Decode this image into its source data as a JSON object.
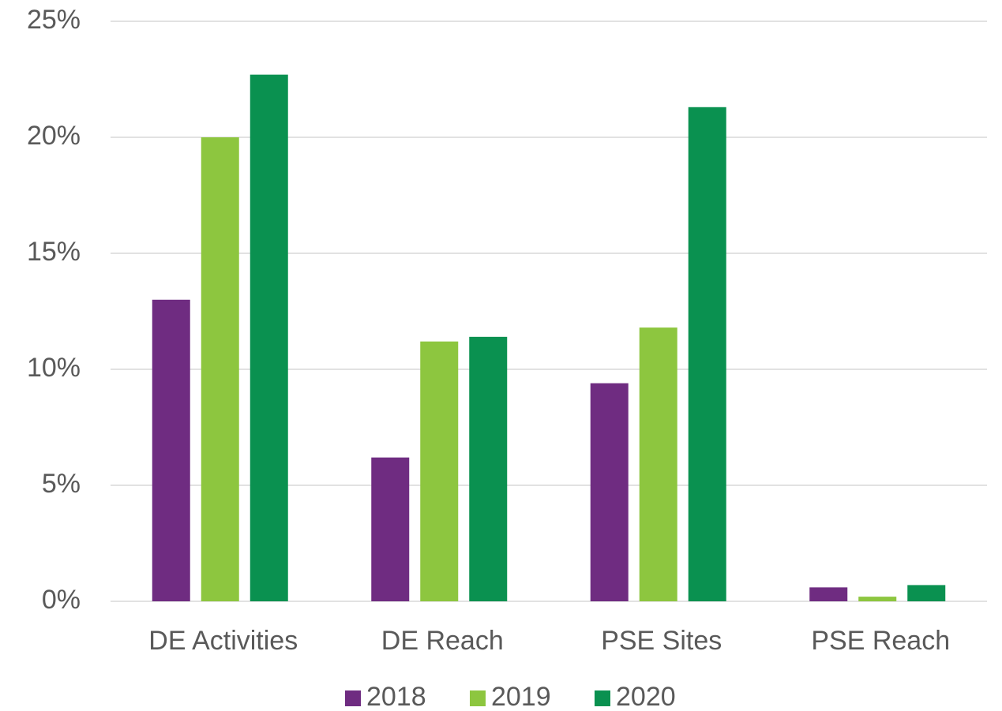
{
  "chart_data": {
    "type": "bar",
    "categories": [
      "DE Activities",
      "DE Reach",
      "PSE Sites",
      "PSE Reach"
    ],
    "series": [
      {
        "name": "2018",
        "color": "#6f2c81",
        "values": [
          13,
          6.2,
          9.4,
          0.6
        ]
      },
      {
        "name": "2019",
        "color": "#8dc63f",
        "values": [
          20,
          11.2,
          11.8,
          0.2
        ]
      },
      {
        "name": "2020",
        "color": "#0a9150",
        "values": [
          22.7,
          11.4,
          21.3,
          0.7
        ]
      }
    ],
    "ylim": [
      0,
      25
    ],
    "yticks": [
      {
        "value": 0,
        "label": "0%"
      },
      {
        "value": 5,
        "label": "5%"
      },
      {
        "value": 10,
        "label": "10%"
      },
      {
        "value": 15,
        "label": "15%"
      },
      {
        "value": 20,
        "label": "20%"
      },
      {
        "value": 25,
        "label": "25%"
      }
    ],
    "grid": true,
    "legend": "bottom"
  }
}
